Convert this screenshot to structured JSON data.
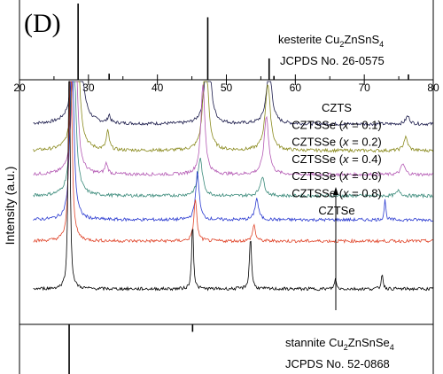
{
  "panel_label": "(D)",
  "x_axis": {
    "range": [
      20,
      80
    ],
    "ticks": [
      "20",
      "30",
      "40",
      "50",
      "60",
      "70",
      "80"
    ]
  },
  "y_axis": {
    "label": "Intensity (a.u.)"
  },
  "top_reference": {
    "name_prefix": "kesterite Cu",
    "name_sub1": "2",
    "name_mid": "ZnSnS",
    "name_sub2": "4",
    "card": "JCPDS No. 26-0575",
    "peaks": [
      {
        "x": 28.5,
        "h": 1.0
      },
      {
        "x": 33.0,
        "h": 0.08
      },
      {
        "x": 47.3,
        "h": 0.82
      },
      {
        "x": 56.2,
        "h": 0.28
      },
      {
        "x": 56.9,
        "h": 0.05
      },
      {
        "x": 76.4,
        "h": 0.07
      }
    ]
  },
  "bottom_reference": {
    "name_prefix": "stannite Cu",
    "name_sub1": "2",
    "name_mid": "ZnSnSe",
    "name_sub2": "4",
    "card": "JCPDS No. 52-0868",
    "peaks": [
      {
        "x": 27.2,
        "h": 1.0
      },
      {
        "x": 45.1,
        "h": 0.15
      }
    ]
  },
  "legend": {
    "entries": [
      {
        "label": "CZTS",
        "x_value": "",
        "color": "#1a1a4a"
      },
      {
        "label": "CZTSSe (",
        "x_value": "0.1",
        "color": "#8a8a1e"
      },
      {
        "label": "CZTSSe (",
        "x_value": "0.2",
        "color": "#b45ab4"
      },
      {
        "label": "CZTSSe (",
        "x_value": "0.4",
        "color": "#3a8a7a"
      },
      {
        "label": "CZTSSe (",
        "x_value": "0.6",
        "color": "#2a3ad0"
      },
      {
        "label": "CZTSSe (",
        "x_value": "0.8",
        "color": "#e0452a"
      },
      {
        "label": "CZTSe",
        "x_value": "",
        "color": "#000000"
      }
    ],
    "x_symbol": "x",
    "eq": " = ",
    "close": ")"
  },
  "chart_data": {
    "type": "line",
    "xlim": [
      20,
      80
    ],
    "ylabel": "Intensity (a.u.)",
    "xlabel": "",
    "series": [
      {
        "name": "CZTS",
        "color": "#1a1a4a",
        "baseline": 0.72,
        "peaks": [
          [
            28.4,
            0.78,
            0.9
          ],
          [
            33.0,
            0.03,
            0.4
          ],
          [
            47.3,
            0.4,
            0.8
          ],
          [
            56.2,
            0.22,
            0.9
          ],
          [
            76.3,
            0.03,
            0.7
          ]
        ]
      },
      {
        "name": "CZTSSe (x = 0.1)",
        "color": "#8a8a1e",
        "baseline": 0.62,
        "peaks": [
          [
            28.2,
            0.72,
            0.8
          ],
          [
            32.8,
            0.07,
            0.5
          ],
          [
            47.0,
            0.4,
            0.8
          ],
          [
            56.0,
            0.25,
            0.9
          ],
          [
            76.0,
            0.05,
            0.7
          ]
        ]
      },
      {
        "name": "CZTSSe (x = 0.2)",
        "color": "#b45ab4",
        "baseline": 0.53,
        "peaks": [
          [
            28.0,
            0.75,
            0.7
          ],
          [
            32.6,
            0.04,
            0.5
          ],
          [
            46.6,
            0.34,
            0.7
          ],
          [
            55.8,
            0.22,
            0.8
          ],
          [
            75.6,
            0.04,
            0.7
          ]
        ]
      },
      {
        "name": "CZTSSe (x = 0.4)",
        "color": "#3a8a7a",
        "baseline": 0.45,
        "peaks": [
          [
            27.8,
            0.72,
            0.7
          ],
          [
            46.2,
            0.14,
            0.8
          ],
          [
            55.2,
            0.07,
            0.8
          ],
          [
            75.0,
            0.02,
            0.7
          ]
        ]
      },
      {
        "name": "CZTSSe (x = 0.6)",
        "color": "#2a3ad0",
        "baseline": 0.36,
        "peaks": [
          [
            27.6,
            0.8,
            0.55
          ],
          [
            45.8,
            0.18,
            0.6
          ],
          [
            54.4,
            0.08,
            0.6
          ],
          [
            73.0,
            0.08,
            0.25
          ]
        ]
      },
      {
        "name": "CZTSSe (x = 0.8)",
        "color": "#e0452a",
        "baseline": 0.28,
        "peaks": [
          [
            27.4,
            0.85,
            0.45
          ],
          [
            45.5,
            0.16,
            0.5
          ],
          [
            54.0,
            0.06,
            0.5
          ]
        ]
      },
      {
        "name": "CZTSe",
        "color": "#000000",
        "baseline": 0.1,
        "peaks": [
          [
            27.2,
            1.02,
            0.3
          ],
          [
            45.1,
            0.26,
            0.3
          ],
          [
            53.5,
            0.2,
            0.35
          ],
          [
            65.8,
            0.04,
            0.3
          ],
          [
            72.6,
            0.06,
            0.3
          ]
        ]
      }
    ]
  }
}
